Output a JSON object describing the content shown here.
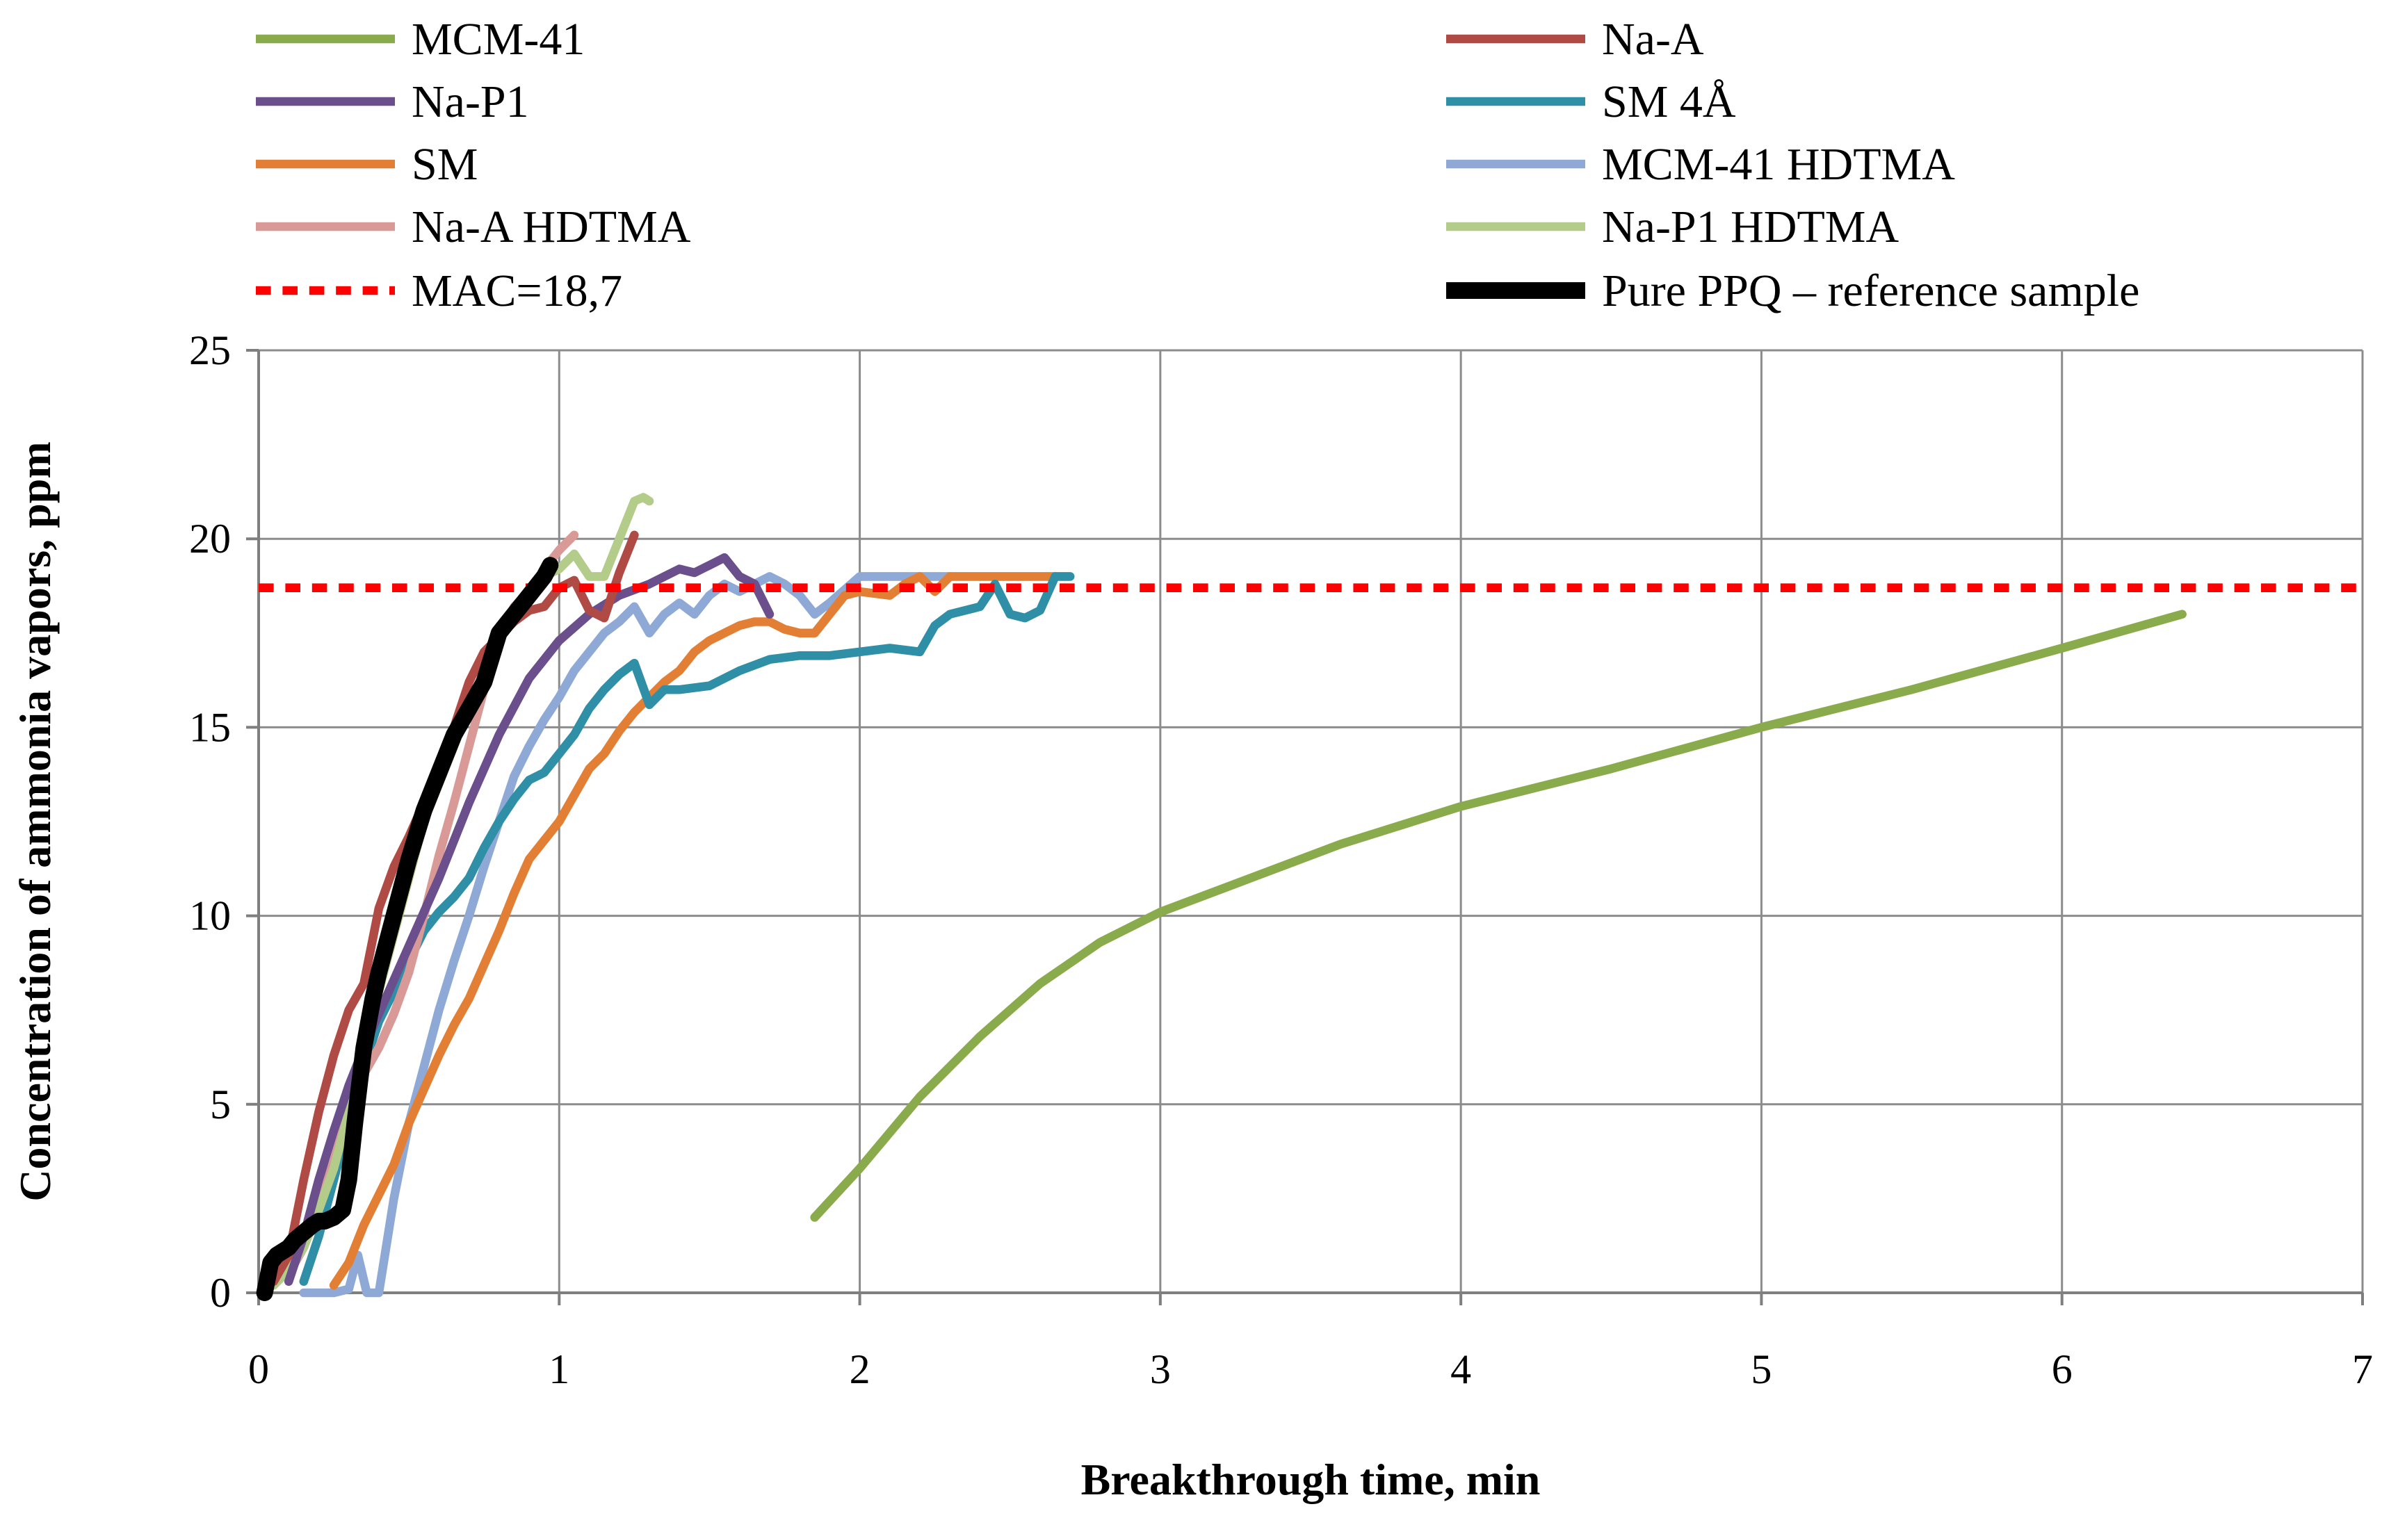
{
  "chart_data": {
    "type": "line",
    "title": "",
    "xlabel": "Breakthrough time, min",
    "ylabel": "Concentration of ammonia vapors, ppm",
    "xlim": [
      0,
      7
    ],
    "ylim": [
      0,
      25
    ],
    "xticks": [
      0,
      1,
      2,
      3,
      4,
      5,
      6,
      7
    ],
    "yticks": [
      0,
      5,
      10,
      15,
      20,
      25
    ],
    "grid": true,
    "legend_position": "top",
    "series": [
      {
        "name": "MCM-41",
        "color": "#8aab4b",
        "dash": "",
        "width": 2.2,
        "x": [
          1.85,
          2.0,
          2.2,
          2.4,
          2.6,
          2.8,
          3.0,
          3.3,
          3.6,
          4.0,
          4.5,
          5.0,
          5.5,
          6.0,
          6.4
        ],
        "y": [
          2.0,
          3.3,
          5.2,
          6.8,
          8.2,
          9.3,
          10.1,
          11.0,
          11.9,
          12.9,
          13.9,
          15.0,
          16.0,
          17.1,
          18.0
        ]
      },
      {
        "name": "Na-A",
        "color": "#b04a44",
        "dash": "",
        "width": 2.2,
        "x": [
          0.05,
          0.1,
          0.15,
          0.2,
          0.25,
          0.3,
          0.35,
          0.4,
          0.45,
          0.5,
          0.55,
          0.6,
          0.65,
          0.7,
          0.75,
          0.8,
          0.85,
          0.9,
          0.95,
          1.0,
          1.05,
          1.1,
          1.15,
          1.2,
          1.25
        ],
        "y": [
          0.3,
          1.0,
          3.0,
          4.8,
          6.3,
          7.5,
          8.2,
          10.2,
          11.3,
          12.1,
          13.0,
          13.8,
          15.0,
          16.2,
          17.0,
          17.4,
          17.8,
          18.1,
          18.2,
          18.7,
          18.9,
          18.1,
          17.9,
          19.1,
          20.1
        ]
      },
      {
        "name": "Na-P1",
        "color": "#6a4f8c",
        "dash": "",
        "width": 2.2,
        "x": [
          0.1,
          0.15,
          0.2,
          0.25,
          0.3,
          0.35,
          0.4,
          0.5,
          0.6,
          0.7,
          0.8,
          0.9,
          1.0,
          1.1,
          1.2,
          1.3,
          1.35,
          1.4,
          1.45,
          1.5,
          1.55,
          1.6,
          1.65,
          1.7
        ],
        "y": [
          0.3,
          1.5,
          3.0,
          4.3,
          5.5,
          6.5,
          7.4,
          9.2,
          11.0,
          13.0,
          14.8,
          16.3,
          17.3,
          18.0,
          18.5,
          18.8,
          19.0,
          19.2,
          19.1,
          19.3,
          19.5,
          19.0,
          18.8,
          18.0
        ]
      },
      {
        "name": "SM 4Å",
        "color": "#2f8fa6",
        "dash": "",
        "width": 2.2,
        "x": [
          0.15,
          0.2,
          0.25,
          0.3,
          0.35,
          0.4,
          0.45,
          0.5,
          0.55,
          0.6,
          0.65,
          0.7,
          0.75,
          0.8,
          0.85,
          0.9,
          0.95,
          1.0,
          1.05,
          1.1,
          1.15,
          1.2,
          1.25,
          1.3,
          1.35,
          1.4,
          1.5,
          1.6,
          1.7,
          1.8,
          1.9,
          2.0,
          2.1,
          2.2,
          2.25,
          2.3,
          2.4,
          2.45,
          2.5,
          2.55,
          2.6,
          2.65,
          2.7
        ],
        "y": [
          0.3,
          1.5,
          3.0,
          4.5,
          6.0,
          7.2,
          8.0,
          8.8,
          9.6,
          10.1,
          10.5,
          11.0,
          11.8,
          12.5,
          13.1,
          13.6,
          13.8,
          14.3,
          14.8,
          15.5,
          16.0,
          16.4,
          16.7,
          15.6,
          16.0,
          16.0,
          16.1,
          16.5,
          16.8,
          16.9,
          16.9,
          17.0,
          17.1,
          17.0,
          17.7,
          18.0,
          18.2,
          18.8,
          18.0,
          17.9,
          18.1,
          19.0,
          19.0
        ]
      },
      {
        "name": "SM",
        "color": "#e37e35",
        "dash": "",
        "width": 2.2,
        "x": [
          0.25,
          0.3,
          0.35,
          0.4,
          0.45,
          0.5,
          0.55,
          0.6,
          0.65,
          0.7,
          0.75,
          0.8,
          0.85,
          0.9,
          0.95,
          1.0,
          1.05,
          1.1,
          1.15,
          1.2,
          1.25,
          1.3,
          1.35,
          1.4,
          1.45,
          1.5,
          1.55,
          1.6,
          1.65,
          1.7,
          1.75,
          1.8,
          1.85,
          1.9,
          1.95,
          2.0,
          2.1,
          2.15,
          2.2,
          2.25,
          2.3,
          2.4,
          2.5,
          2.6,
          2.65
        ],
        "y": [
          0.2,
          0.8,
          1.8,
          2.6,
          3.4,
          4.5,
          5.4,
          6.3,
          7.1,
          7.8,
          8.7,
          9.6,
          10.6,
          11.5,
          12.0,
          12.5,
          13.2,
          13.9,
          14.3,
          14.9,
          15.4,
          15.8,
          16.2,
          16.5,
          17.0,
          17.3,
          17.5,
          17.7,
          17.8,
          17.8,
          17.6,
          17.5,
          17.5,
          18.0,
          18.5,
          18.6,
          18.5,
          18.8,
          19.0,
          18.6,
          19.0,
          19.0,
          19.0,
          19.0,
          19.0
        ]
      },
      {
        "name": "MCM-41 HDTMA",
        "color": "#8fa9d6",
        "dash": "",
        "width": 2.2,
        "x": [
          0.15,
          0.2,
          0.25,
          0.3,
          0.33,
          0.36,
          0.4,
          0.45,
          0.5,
          0.55,
          0.6,
          0.65,
          0.7,
          0.75,
          0.8,
          0.85,
          0.9,
          0.95,
          1.0,
          1.05,
          1.1,
          1.15,
          1.2,
          1.25,
          1.3,
          1.35,
          1.4,
          1.45,
          1.5,
          1.55,
          1.6,
          1.7,
          1.75,
          1.8,
          1.85,
          1.9,
          2.0,
          2.1,
          2.2,
          2.3
        ],
        "y": [
          0.0,
          0.0,
          0.0,
          0.1,
          1.0,
          0.0,
          0.0,
          2.5,
          4.5,
          6.0,
          7.5,
          8.8,
          10.0,
          11.3,
          12.5,
          13.7,
          14.5,
          15.2,
          15.8,
          16.5,
          17.0,
          17.5,
          17.8,
          18.2,
          17.5,
          18.0,
          18.3,
          18.0,
          18.5,
          18.8,
          18.6,
          19.0,
          18.8,
          18.5,
          18.0,
          18.3,
          19.0,
          19.0,
          19.0,
          19.0
        ]
      },
      {
        "name": "Na-A HDTMA",
        "color": "#d99a97",
        "dash": "",
        "width": 2.2,
        "x": [
          0.1,
          0.15,
          0.2,
          0.25,
          0.3,
          0.35,
          0.4,
          0.45,
          0.5,
          0.55,
          0.6,
          0.65,
          0.7,
          0.75,
          0.8,
          0.85,
          0.9,
          0.95,
          1.0,
          1.05
        ],
        "y": [
          0.5,
          1.2,
          2.3,
          3.5,
          4.8,
          5.8,
          6.5,
          7.4,
          8.5,
          10.0,
          11.6,
          13.0,
          14.5,
          16.0,
          17.3,
          18.2,
          18.6,
          19.2,
          19.7,
          20.1
        ]
      },
      {
        "name": "Na-P1 HDTMA",
        "color": "#b3cc8a",
        "dash": "",
        "width": 2.2,
        "x": [
          0.05,
          0.1,
          0.15,
          0.2,
          0.25,
          0.3,
          0.35,
          0.4,
          0.45,
          0.5,
          0.55,
          0.6,
          0.65,
          0.7,
          0.75,
          0.8,
          0.85,
          0.9,
          0.95,
          1.0,
          1.05,
          1.1,
          1.15,
          1.2,
          1.25,
          1.28,
          1.3
        ],
        "y": [
          0.2,
          0.6,
          1.2,
          2.2,
          3.3,
          4.8,
          6.5,
          8.0,
          9.5,
          11.0,
          12.5,
          13.5,
          14.5,
          15.5,
          16.5,
          17.4,
          18.0,
          18.5,
          19.0,
          19.2,
          19.6,
          19.0,
          19.0,
          20.0,
          21.0,
          21.1,
          21.0
        ]
      },
      {
        "name": "MAC=18,7",
        "color": "#ff0000",
        "dash": "18 14",
        "width": 2.2,
        "x": [
          0,
          7
        ],
        "y": [
          18.7,
          18.7
        ]
      },
      {
        "name": "Pure PPQ – reference sample",
        "color": "#000000",
        "dash": "",
        "width": 4.2,
        "x": [
          0.02,
          0.04,
          0.06,
          0.08,
          0.1,
          0.12,
          0.15,
          0.18,
          0.2,
          0.22,
          0.25,
          0.28,
          0.3,
          0.32,
          0.35,
          0.38,
          0.4,
          0.45,
          0.5,
          0.55,
          0.6,
          0.65,
          0.7,
          0.75,
          0.8,
          0.85,
          0.9,
          0.95,
          0.97
        ],
        "y": [
          0.0,
          0.8,
          1.0,
          1.1,
          1.2,
          1.4,
          1.6,
          1.8,
          1.9,
          1.9,
          2.0,
          2.2,
          3.0,
          4.5,
          6.5,
          7.8,
          8.5,
          10.0,
          11.5,
          12.8,
          13.8,
          14.8,
          15.5,
          16.2,
          17.5,
          18.0,
          18.5,
          19.0,
          19.3
        ]
      }
    ]
  }
}
